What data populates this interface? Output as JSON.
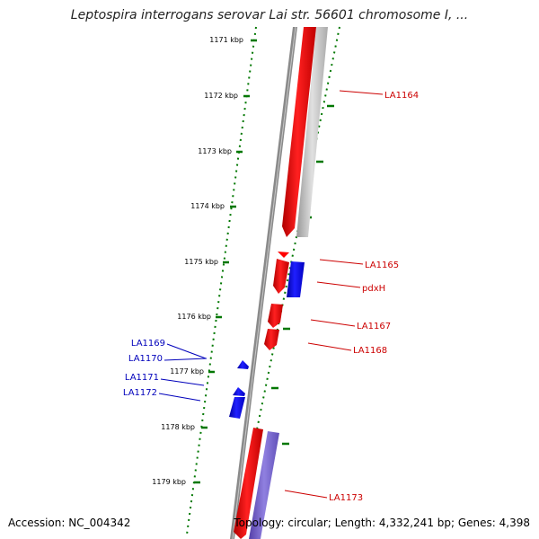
{
  "title": "Leptospira interrogans serovar Lai str. 56601 chromosome I, ...",
  "footer": {
    "accession": "Accession: NC_004342",
    "summary": "Topology: circular; Length: 4,332,241 bp; Genes: 4,398"
  },
  "ticks": [
    "1171 kbp",
    "1172 kbp",
    "1173 kbp",
    "1174 kbp",
    "1175 kbp",
    "1176 kbp",
    "1177 kbp",
    "1178 kbp",
    "1179 kbp"
  ],
  "genes_forward": [
    {
      "label": "LA1164",
      "strand": "+",
      "color": "#ff0000"
    },
    {
      "label": "LA1165",
      "strand": "+",
      "color": "#ff0000"
    },
    {
      "label": "pdxH",
      "strand": "+",
      "color": "#0000ff"
    },
    {
      "label": "LA1167",
      "strand": "+",
      "color": "#ff0000"
    },
    {
      "label": "LA1168",
      "strand": "+",
      "color": "#ff0000"
    },
    {
      "label": "LA1173",
      "strand": "+",
      "color": "#ff0000"
    }
  ],
  "genes_reverse": [
    {
      "label": "LA1169",
      "strand": "-",
      "color": "#0000ff"
    },
    {
      "label": "LA1170",
      "strand": "-",
      "color": "#0000ff"
    },
    {
      "label": "LA1171",
      "strand": "-",
      "color": "#0000ff"
    },
    {
      "label": "LA1172",
      "strand": "-",
      "color": "#0000ff"
    }
  ],
  "colors": {
    "cds_forward": "#ff0000",
    "cds_reverse": "#0000ff",
    "backbone": "#808080",
    "ticks": "#007700"
  }
}
